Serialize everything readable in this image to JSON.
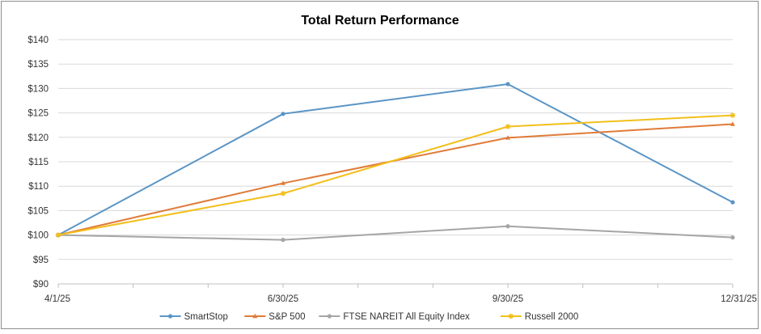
{
  "chart_data": {
    "type": "line",
    "title": "Total Return Performance",
    "xlabel": "",
    "ylabel": "",
    "categories": [
      "4/1/25",
      "6/30/25",
      "9/30/25",
      "12/31/25"
    ],
    "ylim": [
      90,
      140
    ],
    "yticks": [
      90,
      95,
      100,
      105,
      110,
      115,
      120,
      125,
      130,
      135,
      140
    ],
    "ytick_labels": [
      "$90",
      "$95",
      "$100",
      "$105",
      "$110",
      "$115",
      "$120",
      "$125",
      "$130",
      "$135",
      "$140"
    ],
    "grid": "horizontal",
    "legend_position": "bottom",
    "series": [
      {
        "name": "SmartStop",
        "values": [
          100,
          124.8,
          130.9,
          106.7
        ],
        "color": "#5b95c6",
        "marker": "circle"
      },
      {
        "name": "S&P 500",
        "values": [
          100,
          110.6,
          119.9,
          122.7
        ],
        "color": "#e07b39",
        "marker": "triangle"
      },
      {
        "name": "FTSE NAREIT All Equity Index",
        "values": [
          100,
          99.0,
          101.8,
          99.5
        ],
        "color": "#a5a5a5",
        "marker": "circle"
      },
      {
        "name": "Russell 2000",
        "values": [
          100,
          108.5,
          122.2,
          124.5
        ],
        "color": "#f2bf1b",
        "marker": "star"
      }
    ]
  }
}
